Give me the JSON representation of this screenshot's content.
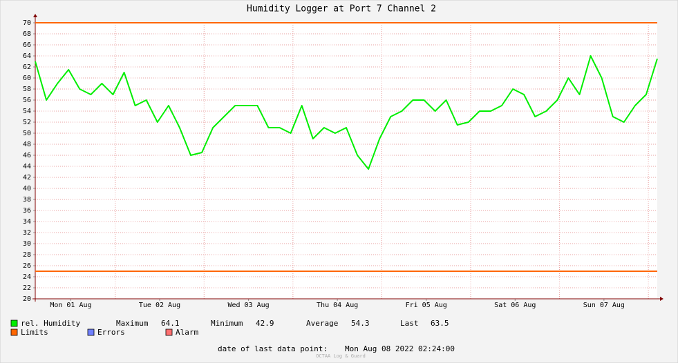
{
  "chart_data": {
    "type": "line",
    "title": "Humidity Logger at Port 7 Channel 2",
    "x": [
      "2022-08-01T02:24",
      "2022-08-01T05:24",
      "2022-08-01T08:24",
      "2022-08-01T11:24",
      "2022-08-01T14:24",
      "2022-08-01T17:24",
      "2022-08-01T20:24",
      "2022-08-01T23:24",
      "2022-08-02T02:24",
      "2022-08-02T05:24",
      "2022-08-02T08:24",
      "2022-08-02T11:24",
      "2022-08-02T14:24",
      "2022-08-02T17:24",
      "2022-08-02T20:24",
      "2022-08-02T23:24",
      "2022-08-03T02:24",
      "2022-08-03T05:24",
      "2022-08-03T08:24",
      "2022-08-03T11:24",
      "2022-08-03T14:24",
      "2022-08-03T17:24",
      "2022-08-03T20:24",
      "2022-08-03T23:24",
      "2022-08-04T02:24",
      "2022-08-04T05:24",
      "2022-08-04T08:24",
      "2022-08-04T11:24",
      "2022-08-04T14:24",
      "2022-08-04T17:24",
      "2022-08-04T20:24",
      "2022-08-04T23:24",
      "2022-08-05T02:24",
      "2022-08-05T05:24",
      "2022-08-05T08:24",
      "2022-08-05T11:24",
      "2022-08-05T14:24",
      "2022-08-05T17:24",
      "2022-08-05T20:24",
      "2022-08-05T23:24",
      "2022-08-06T02:24",
      "2022-08-06T05:24",
      "2022-08-06T08:24",
      "2022-08-06T11:24",
      "2022-08-06T14:24",
      "2022-08-06T17:24",
      "2022-08-06T20:24",
      "2022-08-06T23:24",
      "2022-08-07T02:24",
      "2022-08-07T05:24",
      "2022-08-07T08:24",
      "2022-08-07T11:24",
      "2022-08-07T14:24",
      "2022-08-07T17:24",
      "2022-08-07T20:24",
      "2022-08-07T23:24",
      "2022-08-08T02:24"
    ],
    "series": [
      {
        "name": "rel. Humidity",
        "color": "#00ee00",
        "values": [
          63,
          56,
          59,
          61.5,
          58,
          57,
          59,
          57,
          61,
          55,
          56,
          52,
          55,
          51,
          46,
          46.5,
          51,
          53,
          55,
          55,
          55,
          51,
          51,
          50,
          55,
          49,
          51,
          50,
          51,
          46,
          43.5,
          49,
          53,
          54,
          56,
          56,
          54,
          56,
          51.5,
          52,
          54,
          54,
          55,
          58,
          57,
          53,
          54,
          56,
          60,
          57,
          64,
          60,
          53,
          52,
          55,
          57,
          63.5
        ]
      }
    ],
    "limits": {
      "name": "Limits",
      "color": "#ff6600",
      "values": [
        25,
        70
      ]
    },
    "other_legend": [
      {
        "name": "Errors",
        "color": "#7080ff"
      },
      {
        "name": "Alarm",
        "color": "#ff7070"
      }
    ],
    "stats": [
      {
        "label": "Maximum",
        "value": 64.1
      },
      {
        "label": "Minimum",
        "value": 42.9
      },
      {
        "label": "Average",
        "value": 54.3
      },
      {
        "label": "Last",
        "value": 63.5
      }
    ],
    "xlim": [
      "2022-08-01T02:24",
      "2022-08-08T02:24"
    ],
    "xticks": [
      {
        "value": "2022-08-01T12:00",
        "label": "Mon 01 Aug"
      },
      {
        "value": "2022-08-02T12:00",
        "label": "Tue 02 Aug"
      },
      {
        "value": "2022-08-03T12:00",
        "label": "Wed 03 Aug"
      },
      {
        "value": "2022-08-04T12:00",
        "label": "Thu 04 Aug"
      },
      {
        "value": "2022-08-05T12:00",
        "label": "Fri 05 Aug"
      },
      {
        "value": "2022-08-06T12:00",
        "label": "Sat 06 Aug"
      },
      {
        "value": "2022-08-07T12:00",
        "label": "Sun 07 Aug"
      }
    ],
    "ylim": [
      20,
      70
    ],
    "yticks": [
      20,
      22,
      24,
      26,
      28,
      30,
      32,
      34,
      36,
      38,
      40,
      42,
      44,
      46,
      48,
      50,
      52,
      54,
      56,
      58,
      60,
      62,
      64,
      66,
      68,
      70
    ],
    "grid": true,
    "footer": {
      "label": "date of last data point:",
      "value": "Mon Aug 08 2022 02:24:00"
    },
    "watermark": "OCTAA Log & Guard"
  }
}
